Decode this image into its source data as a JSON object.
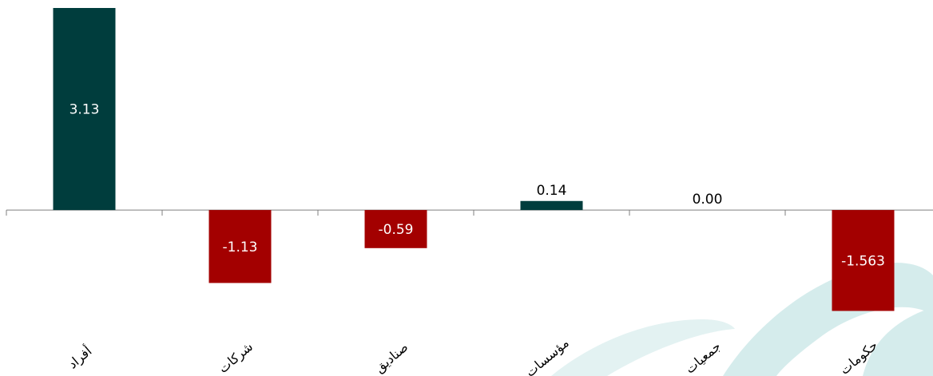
{
  "chart_data": {
    "type": "bar",
    "title": "",
    "xlabel": "",
    "ylabel": "",
    "categories": [
      "أفراد",
      "شركات",
      "صناديق",
      "مؤسسات",
      "جمعيات",
      "حكومات"
    ],
    "values": [
      3.13,
      -1.13,
      -0.59,
      0.14,
      0.0,
      -1.563
    ],
    "value_labels": [
      "3.13",
      "-1.13",
      "-0.59",
      "0.14",
      "0.00",
      "-1.563"
    ],
    "ylim": [
      -2.2,
      3.13
    ],
    "grid": false,
    "legend": "none",
    "colors": {
      "positive": "#003d3d",
      "negative": "#a30000",
      "axis": "#7f7f7f",
      "label_on_bar": "#ffffff",
      "label_outside": "#000000",
      "watermark": "#d5ecec"
    }
  }
}
